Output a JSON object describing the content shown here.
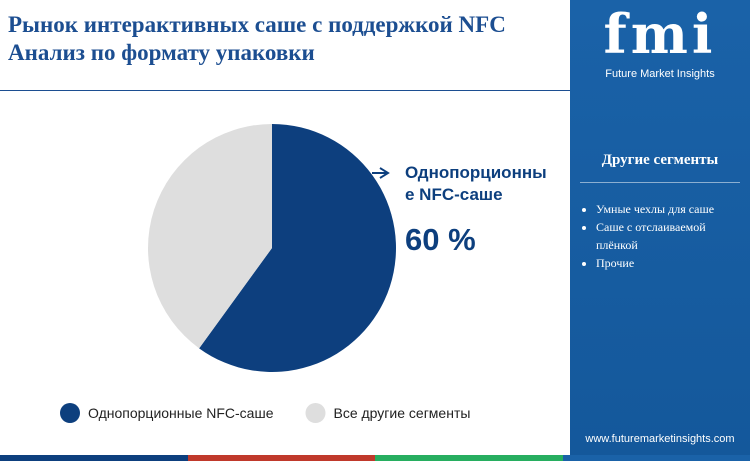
{
  "chart_data": {
    "type": "pie",
    "title": "Рынок интерактивных саше с поддержкой NFC",
    "subtitle": "Анализ по формату упаковки",
    "categories": [
      "Однопорционные NFC-саше",
      "Все другие сегменты"
    ],
    "values": [
      60,
      40
    ],
    "value_labels": [
      "60 %",
      null
    ],
    "colors": [
      "#0d3f7e",
      "#dedede"
    ]
  },
  "brand": {
    "logo": "fmi",
    "name": "Future Market Insights",
    "website": "www.futuremarketinsights.com"
  },
  "sidebar": {
    "heading": "Другие сегменты",
    "items": [
      "Умные чехлы для саше",
      "Саше с отслаиваемой плёнкой",
      "Прочие"
    ]
  }
}
